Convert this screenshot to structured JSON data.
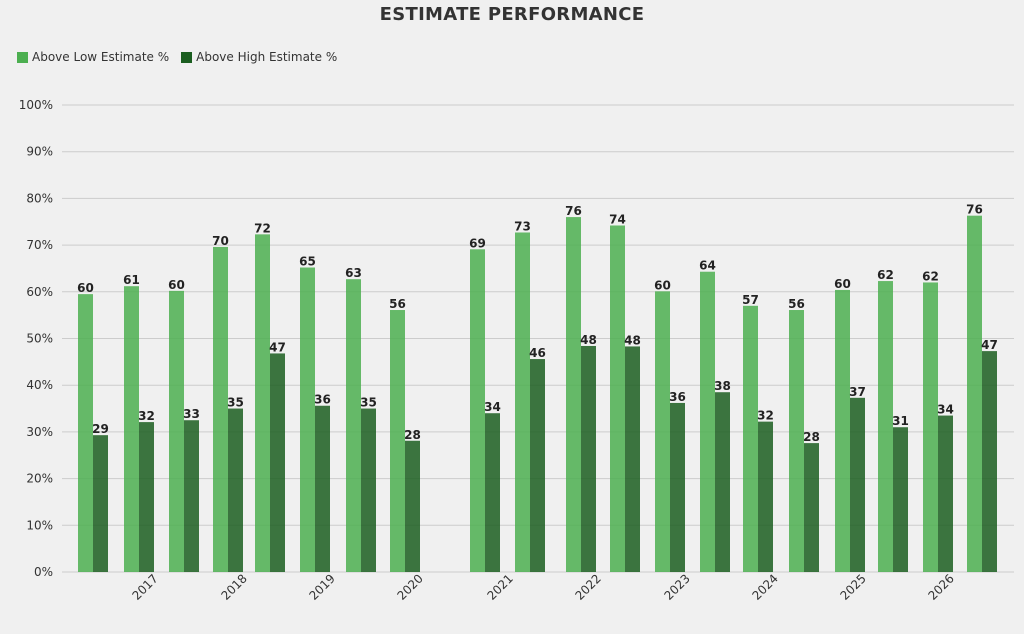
{
  "chart_data": {
    "type": "bar",
    "title": "ESTIMATE PERFORMANCE",
    "xlabel": "",
    "ylabel": "",
    "ylim": [
      0,
      100
    ],
    "y_ticks": [
      "0%",
      "10%",
      "20%",
      "30%",
      "40%",
      "50%",
      "60%",
      "70%",
      "80%",
      "90%",
      "100%"
    ],
    "y_tick_values": [
      0,
      10,
      20,
      30,
      40,
      50,
      60,
      70,
      80,
      90,
      100
    ],
    "x_tick_labels": [
      "2017",
      "2018",
      "2019",
      "2020",
      "2021",
      "2022",
      "2023",
      "2024",
      "2025",
      "2026"
    ],
    "grid": true,
    "legend_position": "top-left",
    "series": [
      {
        "name": "Above Low Estimate %",
        "color": "#4caf50",
        "values": [
          59.5,
          61.2,
          60.2,
          69.6,
          72.3,
          65.2,
          62.7,
          56.1,
          69.1,
          72.7,
          76.0,
          74.2,
          60.1,
          64.3,
          57.0,
          56.1,
          60.4,
          62.3,
          62.0,
          76.3
        ],
        "labels": [
          "60",
          "61",
          "60",
          "70",
          "72",
          "65",
          "63",
          "56",
          "69",
          "73",
          "76",
          "74",
          "60",
          "64",
          "57",
          "56",
          "60",
          "62",
          "62",
          "76"
        ]
      },
      {
        "name": "Above High Estimate %",
        "color": "#1b5e20",
        "values": [
          29.3,
          32.1,
          32.5,
          35.0,
          46.8,
          35.6,
          35.0,
          28.1,
          34.0,
          45.6,
          48.4,
          48.3,
          36.2,
          38.5,
          32.2,
          27.6,
          37.3,
          31.0,
          33.5,
          47.3
        ],
        "labels": [
          "29",
          "32",
          "33",
          "35",
          "47",
          "36",
          "35",
          "28",
          "34",
          "46",
          "48",
          "48",
          "36",
          "38",
          "32",
          "28",
          "37",
          "31",
          "34",
          "47"
        ]
      }
    ]
  }
}
